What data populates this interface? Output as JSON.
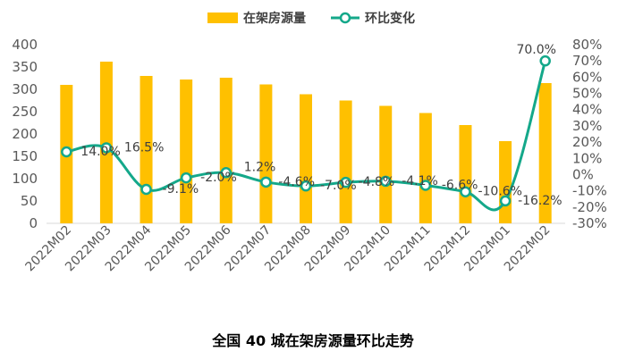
{
  "chart_data": {
    "type": "bar+line",
    "categories": [
      "2022M02",
      "2022M03",
      "2022M04",
      "2022M05",
      "2022M06",
      "2022M07",
      "2022M08",
      "2022M09",
      "2022M10",
      "2022M11",
      "2022M12",
      "2022M01",
      "2022M02"
    ],
    "series": [
      {
        "name": "在架房源量",
        "type": "bar",
        "axis": "left",
        "color": "#FFC000",
        "values": [
          310,
          362,
          330,
          322,
          326,
          311,
          289,
          275,
          263,
          247,
          220,
          184,
          314
        ]
      },
      {
        "name": "环比变化",
        "type": "line",
        "axis": "right",
        "color": "#14A88A",
        "values": [
          14.0,
          16.5,
          -9.1,
          -2.0,
          1.2,
          -4.6,
          -7.0,
          -4.8,
          -4.1,
          -6.6,
          -10.6,
          -16.2,
          70.0
        ],
        "labels": [
          "14.0%",
          "16.5%",
          "-9.1%",
          "-2.0%",
          "1.2%",
          "-4.6%",
          "-7.0%",
          "-4.8%",
          "-4.1%",
          "-6.6%",
          "-10.6%",
          "-16.2%",
          "70.0%"
        ]
      }
    ],
    "y_left": {
      "min": 0,
      "max": 400,
      "step": 50,
      "tick_labels": [
        "0",
        "50",
        "100",
        "150",
        "200",
        "250",
        "300",
        "350",
        "400"
      ]
    },
    "y_right": {
      "min": -30,
      "max": 80,
      "step": 10,
      "tick_labels": [
        "-30%",
        "-20%",
        "-10%",
        "0%",
        "10%",
        "20%",
        "30%",
        "40%",
        "50%",
        "60%",
        "70%",
        "80%"
      ]
    },
    "legend_position": "top",
    "grid": false
  },
  "caption": "全国 40 城在架房源量环比走势"
}
